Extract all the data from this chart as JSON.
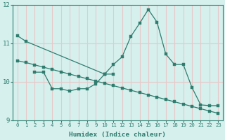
{
  "background_color": "#d6f0ee",
  "grid_color": "#e8c8c8",
  "line_color": "#2e7d6e",
  "xlabel": "Humidex (Indice chaleur)",
  "ylim": [
    9,
    12
  ],
  "yticks": [
    9,
    10,
    11,
    12
  ],
  "x_ticks": [
    0,
    1,
    2,
    3,
    4,
    5,
    6,
    7,
    8,
    9,
    10,
    11,
    12,
    13,
    14,
    15,
    16,
    17,
    18,
    19,
    20,
    21,
    22,
    23
  ],
  "line1_x": [
    0,
    1,
    10,
    11
  ],
  "line1_y": [
    11.2,
    11.05,
    10.2,
    10.2
  ],
  "line2_x": [
    2,
    3,
    4,
    5,
    6,
    7,
    8,
    9,
    10
  ],
  "line2_y": [
    10.25,
    10.25,
    9.82,
    9.82,
    9.76,
    9.82,
    9.82,
    9.95,
    10.2
  ],
  "line3_x": [
    10,
    11,
    12,
    13,
    14,
    15,
    16,
    17,
    18,
    19,
    20,
    21,
    22,
    23
  ],
  "line3_y": [
    10.2,
    10.45,
    10.65,
    11.18,
    11.52,
    11.88,
    11.55,
    10.72,
    10.45,
    10.45,
    9.85,
    9.4,
    9.38,
    9.38
  ],
  "line4_x": [
    0,
    1,
    2,
    3,
    4,
    5,
    6,
    7,
    8,
    9,
    10,
    11,
    12,
    13,
    14,
    15,
    16,
    17,
    18,
    19,
    20,
    21,
    22,
    23
  ],
  "line4_y": [
    10.55,
    10.5,
    10.44,
    10.38,
    10.32,
    10.26,
    10.2,
    10.14,
    10.08,
    10.02,
    9.96,
    9.9,
    9.84,
    9.78,
    9.72,
    9.66,
    9.6,
    9.54,
    9.48,
    9.42,
    9.36,
    9.3,
    9.24,
    9.18
  ]
}
